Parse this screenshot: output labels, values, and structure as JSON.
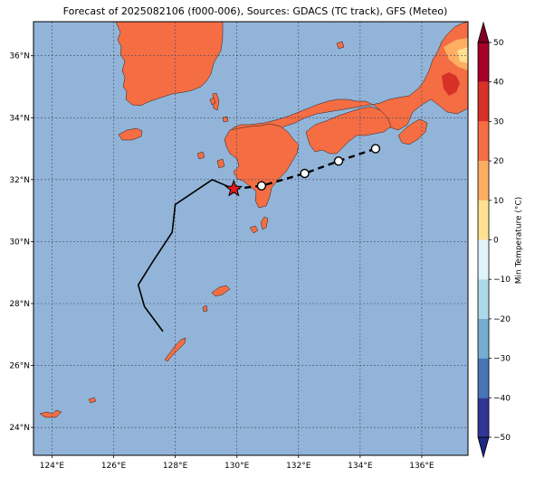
{
  "title": "Forecast of 2025082106 (f000-006), Sources: GDACS (TC track), GFS (Meteo)",
  "map": {
    "lon_range": [
      123.4,
      137.5
    ],
    "lat_range": [
      23.1,
      37.1
    ],
    "lon_ticks": [
      124,
      126,
      128,
      130,
      132,
      134,
      136
    ],
    "lat_ticks": [
      24,
      26,
      28,
      30,
      32,
      34,
      36
    ],
    "lon_tick_labels": [
      "124°E",
      "126°E",
      "128°E",
      "130°E",
      "132°E",
      "134°E",
      "136°E"
    ],
    "lat_tick_labels": [
      "24°N",
      "26°N",
      "28°N",
      "30°N",
      "32°N",
      "34°N",
      "36°N"
    ],
    "grid": true,
    "ocean_color": "#92b4d8",
    "land_color": "#f46d43",
    "hot_land_color": "#d73027",
    "warm_land_color": "#fdae61",
    "pale_land_color": "#fee090"
  },
  "track": {
    "past": [
      [
        127.6,
        27.1
      ],
      [
        127.0,
        27.9
      ],
      [
        126.8,
        28.6
      ],
      [
        127.3,
        29.4
      ],
      [
        127.9,
        30.3
      ],
      [
        128.0,
        31.2
      ],
      [
        129.2,
        32.0
      ],
      [
        129.9,
        31.7
      ]
    ],
    "current_position": [
      129.9,
      31.7
    ],
    "forecast": [
      [
        129.9,
        31.7
      ],
      [
        130.8,
        31.8
      ],
      [
        132.2,
        32.2
      ],
      [
        133.3,
        32.6
      ],
      [
        134.5,
        33.0
      ]
    ],
    "forecast_points": [
      [
        130.8,
        31.8
      ],
      [
        132.2,
        32.2
      ],
      [
        133.3,
        32.6
      ],
      [
        134.5,
        33.0
      ]
    ],
    "line_color": "#000000",
    "marker_color": "#e41a1c"
  },
  "colorbar": {
    "label": "Min Temperature (°C)",
    "min": -50,
    "max": 50,
    "step": 10,
    "tick_labels": [
      "−50",
      "−40",
      "−30",
      "−20",
      "−10",
      "0",
      "10",
      "20",
      "30",
      "40",
      "50"
    ],
    "colors": [
      "#313695",
      "#4575b4",
      "#74add1",
      "#abd9e9",
      "#e0f3f8",
      "#fee090",
      "#fdae61",
      "#f46d43",
      "#d73027",
      "#a50026"
    ],
    "under_color": "#1b2a80",
    "over_color": "#7f0021"
  }
}
